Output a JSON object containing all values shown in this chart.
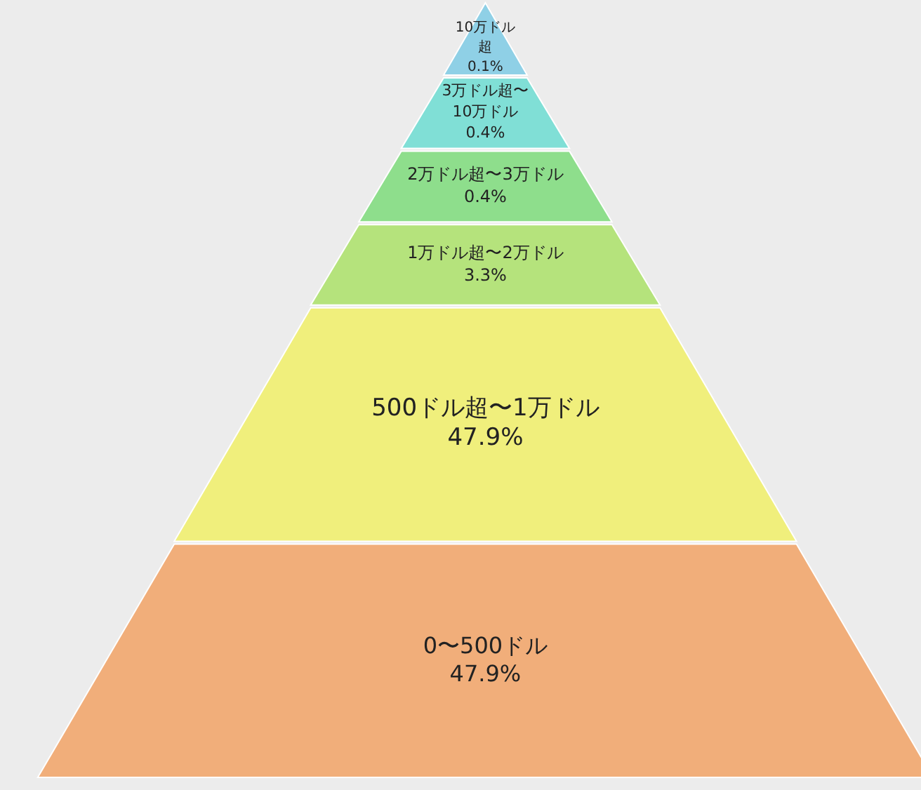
{
  "chart_data": {
    "type": "other",
    "categories": [
      "10万ドル超",
      "3万ドル超〜10万ドル",
      "2万ドル超〜3万ドル",
      "1万ドル超〜2万ドル",
      "500ドル超〜1万ドル",
      "0〜500ドル"
    ],
    "values": [
      0.1,
      0.4,
      0.4,
      3.3,
      47.9,
      47.9
    ],
    "value_labels": [
      "0.1%",
      "0.4%",
      "0.4%",
      "3.3%",
      "47.9%",
      "47.9%"
    ],
    "colors": [
      "#8fd0e6",
      "#80dfd6",
      "#8ede8c",
      "#b5e37c",
      "#f0ef7c",
      "#f1ae7a"
    ]
  }
}
